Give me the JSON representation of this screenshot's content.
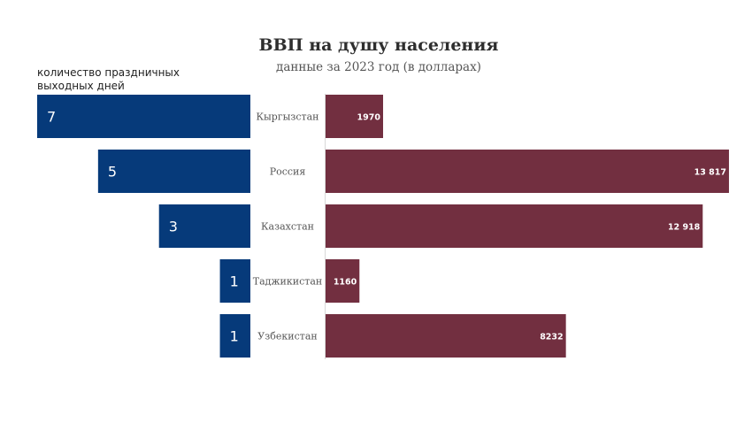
{
  "chart_data": {
    "type": "bar",
    "title": "ВВП на душу населения",
    "subtitle": "данные за 2023 год (в долларах)",
    "left_caption": [
      "количество праздничных",
      "выходных дней"
    ],
    "categories": [
      "Кыргызстан",
      "Россия",
      "Казахстан",
      "Таджикистан",
      "Узбекистан"
    ],
    "series": [
      {
        "values": [
          7,
          5,
          3,
          1,
          1
        ],
        "labels": [
          "7",
          "5",
          "3",
          "1",
          "1"
        ],
        "color": "#063A7A",
        "xlim": [
          0,
          8
        ]
      },
      {
        "values": [
          1970,
          13817,
          12918,
          1160,
          8232
        ],
        "labels": [
          "1970",
          "13 817",
          "12 918",
          "1160",
          "8232"
        ],
        "color": "#722F40",
        "xlim": [
          0,
          14000
        ]
      }
    ],
    "grid": false
  }
}
